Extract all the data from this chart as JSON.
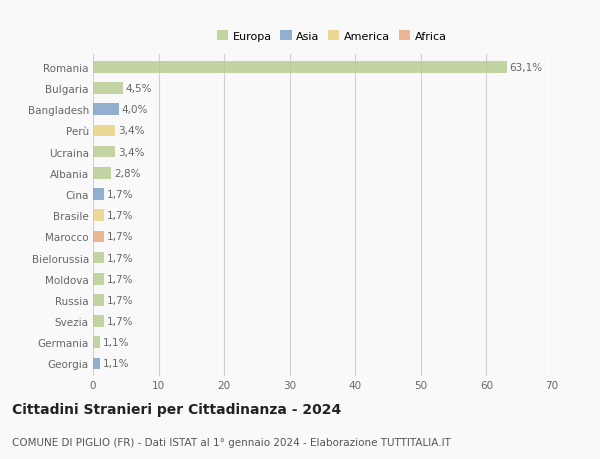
{
  "countries": [
    "Romania",
    "Bulgaria",
    "Bangladesh",
    "Perù",
    "Ucraina",
    "Albania",
    "Cina",
    "Brasile",
    "Marocco",
    "Bielorussia",
    "Moldova",
    "Russia",
    "Svezia",
    "Germania",
    "Georgia"
  ],
  "values": [
    63.1,
    4.5,
    4.0,
    3.4,
    3.4,
    2.8,
    1.7,
    1.7,
    1.7,
    1.7,
    1.7,
    1.7,
    1.7,
    1.1,
    1.1
  ],
  "labels": [
    "63,1%",
    "4,5%",
    "4,0%",
    "3,4%",
    "3,4%",
    "2,8%",
    "1,7%",
    "1,7%",
    "1,7%",
    "1,7%",
    "1,7%",
    "1,7%",
    "1,7%",
    "1,1%",
    "1,1%"
  ],
  "continents": [
    "Europa",
    "Europa",
    "Asia",
    "America",
    "Europa",
    "Europa",
    "Asia",
    "America",
    "Africa",
    "Europa",
    "Europa",
    "Europa",
    "Europa",
    "Europa",
    "Asia"
  ],
  "colors": {
    "Europa": "#b5cc8e",
    "Asia": "#7b9fc7",
    "America": "#e8d080",
    "Africa": "#e8a87c"
  },
  "xlim": [
    0,
    70
  ],
  "xticks": [
    0,
    10,
    20,
    30,
    40,
    50,
    60,
    70
  ],
  "title": "Cittadini Stranieri per Cittadinanza - 2024",
  "subtitle": "COMUNE DI PIGLIO (FR) - Dati ISTAT al 1° gennaio 2024 - Elaborazione TUTTITALIA.IT",
  "background_color": "#f9f9f9",
  "grid_color": "#d0d0d0",
  "bar_height": 0.55,
  "label_fontsize": 7.5,
  "tick_fontsize": 7.5,
  "title_fontsize": 10,
  "subtitle_fontsize": 7.5,
  "legend_fontsize": 8,
  "legend_entries": [
    "Europa",
    "Asia",
    "America",
    "Africa"
  ]
}
